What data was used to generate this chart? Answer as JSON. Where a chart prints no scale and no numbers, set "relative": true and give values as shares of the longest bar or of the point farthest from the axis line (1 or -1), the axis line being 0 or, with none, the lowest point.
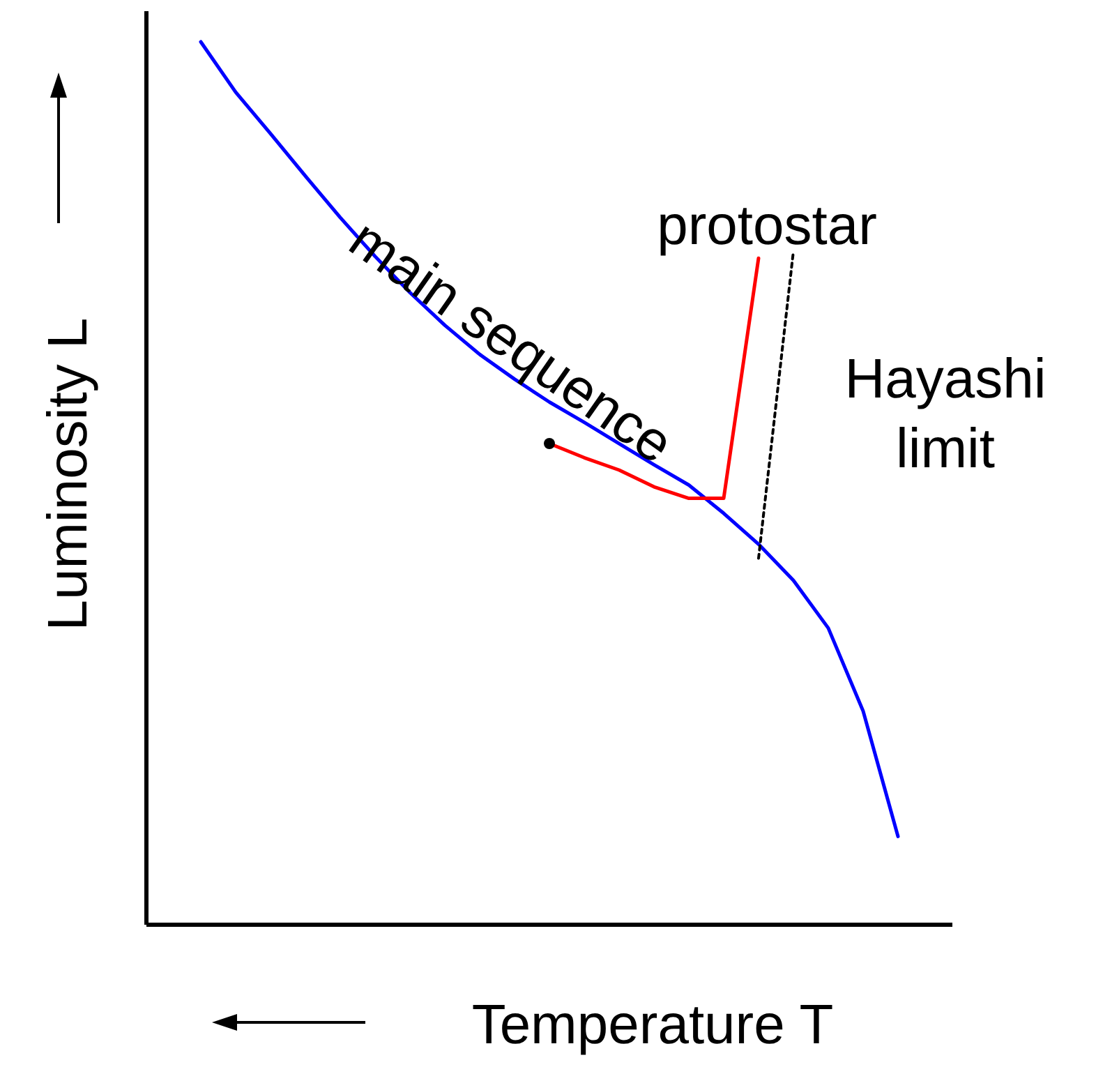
{
  "chart_data": {
    "type": "line",
    "relative": true,
    "xlabel": "Temperature T",
    "ylabel": "Luminosity L",
    "categories": [
      null,
      null,
      null,
      null,
      null,
      null,
      null,
      null,
      null,
      null,
      null,
      null,
      null,
      null,
      null,
      null,
      null,
      null,
      null,
      null,
      null
    ],
    "series": [
      {
        "name": "main sequence",
        "color": "#0000ff",
        "values": [
          1,
          0.943,
          0.896,
          0.848,
          0.801,
          0.757,
          0.716,
          0.679,
          0.646,
          0.618,
          0.592,
          0.569,
          0.545,
          0.521,
          0.498,
          0.466,
          0.431,
          0.39,
          0.336,
          0.242,
          0.1
        ]
      },
      {
        "name": "protostar",
        "color": "#ff0000",
        "values": [
          null,
          null,
          null,
          null,
          null,
          null,
          null,
          null,
          null,
          null,
          0.545,
          0.529,
          0.515,
          0.496,
          0.483,
          0.483,
          0.755,
          null,
          null,
          null,
          null
        ]
      },
      {
        "name": "Hayashi limit",
        "color": "#000000",
        "line_style": "dotted",
        "values": [
          null,
          null,
          null,
          null,
          null,
          null,
          null,
          null,
          null,
          null,
          null,
          null,
          null,
          null,
          null,
          null,
          0.415,
          0.763,
          null,
          null,
          null
        ]
      },
      {
        "marker": "circle",
        "color": "#000000",
        "values": [
          null,
          null,
          null,
          null,
          null,
          null,
          null,
          null,
          null,
          null,
          0.545,
          null,
          null,
          null,
          null,
          null,
          null,
          null,
          null,
          null,
          null
        ]
      }
    ]
  }
}
